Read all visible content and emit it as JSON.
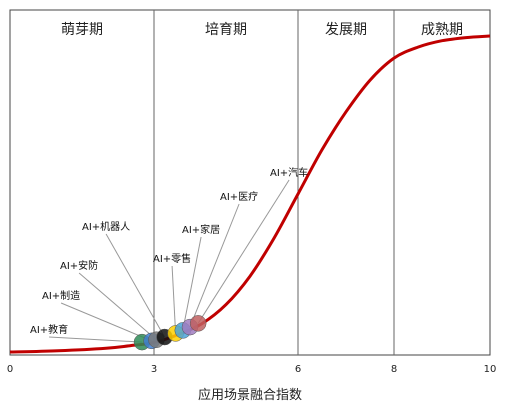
{
  "chart_data": {
    "type": "line",
    "xlabel": "应用场景融合指数",
    "xlim": [
      0,
      10
    ],
    "ylim": [
      0,
      1
    ],
    "grid": false,
    "xticks": [
      {
        "value": 0,
        "label": "0"
      },
      {
        "value": 3,
        "label": "3"
      },
      {
        "value": 6,
        "label": "6"
      },
      {
        "value": 8,
        "label": "8"
      },
      {
        "value": 10,
        "label": "10"
      }
    ],
    "phase_boundaries": [
      3,
      6,
      8
    ],
    "phases": [
      {
        "label": "萌芽期",
        "x_start": 0,
        "x_end": 3
      },
      {
        "label": "培育期",
        "x_start": 3,
        "x_end": 6
      },
      {
        "label": "发展期",
        "x_start": 6,
        "x_end": 8
      },
      {
        "label": "成熟期",
        "x_start": 8,
        "x_end": 10
      }
    ],
    "series": [
      {
        "color": "#c00000",
        "x": [
          0,
          1,
          2,
          2.5,
          3,
          3.5,
          4,
          4.5,
          5,
          5.5,
          6,
          6.5,
          7,
          7.5,
          8,
          8.5,
          9,
          9.5,
          10
        ],
        "y": [
          0.0,
          0.004,
          0.012,
          0.02,
          0.03,
          0.055,
          0.09,
          0.15,
          0.24,
          0.36,
          0.5,
          0.64,
          0.76,
          0.86,
          0.93,
          0.965,
          0.985,
          0.995,
          1.0
        ]
      }
    ],
    "applications": [
      {
        "label": "AI+教育",
        "x": 2.75,
        "color": "#2e8b57"
      },
      {
        "label": "AI+制造",
        "x": 2.95,
        "color": "#3f7fd0"
      },
      {
        "label": "AI+安防",
        "x": 3.05,
        "color": "#7a7a7a"
      },
      {
        "label": "AI+机器人",
        "x": 3.22,
        "color": "#111111"
      },
      {
        "label": "AI+零售",
        "x": 3.45,
        "color": "#ffd000"
      },
      {
        "label": "AI+家居",
        "x": 3.6,
        "color": "#4aa3d9"
      },
      {
        "label": "AI+医疗",
        "x": 3.75,
        "color": "#a07cc0"
      },
      {
        "label": "AI+汽车",
        "x": 3.92,
        "color": "#c06060"
      }
    ]
  }
}
